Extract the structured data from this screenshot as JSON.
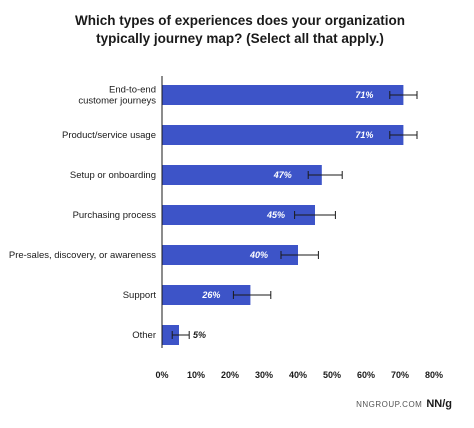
{
  "title_lines": [
    "Which types of experiences does your organization",
    "typically journey map? (Select all that apply.)"
  ],
  "chart_data": {
    "type": "bar",
    "orientation": "horizontal",
    "title": "Which types of experiences does your organization typically journey map? (Select all that apply.)",
    "categories": [
      [
        "End-to-end",
        "customer journeys"
      ],
      [
        "Product/service usage"
      ],
      [
        "Setup or onboarding"
      ],
      [
        "Purchasing process"
      ],
      [
        "Pre-sales, discovery, or awareness"
      ],
      [
        "Support"
      ],
      [
        "Other"
      ]
    ],
    "values": [
      71,
      71,
      47,
      45,
      40,
      26,
      5
    ],
    "value_labels": [
      "71%",
      "71%",
      "47%",
      "45%",
      "40%",
      "26%",
      "5%"
    ],
    "error_bars": [
      [
        67,
        75
      ],
      [
        67,
        75
      ],
      [
        43,
        53
      ],
      [
        39,
        51
      ],
      [
        35,
        46
      ],
      [
        21,
        32
      ],
      [
        3,
        8
      ]
    ],
    "xlim": [
      0,
      80
    ],
    "xticks": [
      0,
      10,
      20,
      30,
      40,
      50,
      60,
      70,
      80
    ],
    "xtick_labels": [
      "0%",
      "10%",
      "20%",
      "30%",
      "40%",
      "50%",
      "60%",
      "70%",
      "80%"
    ],
    "grid": false,
    "legend": "none",
    "bar_color": "#3d54c8"
  },
  "footer": {
    "source": "NNGROUP.COM",
    "logo": "NN/g"
  }
}
